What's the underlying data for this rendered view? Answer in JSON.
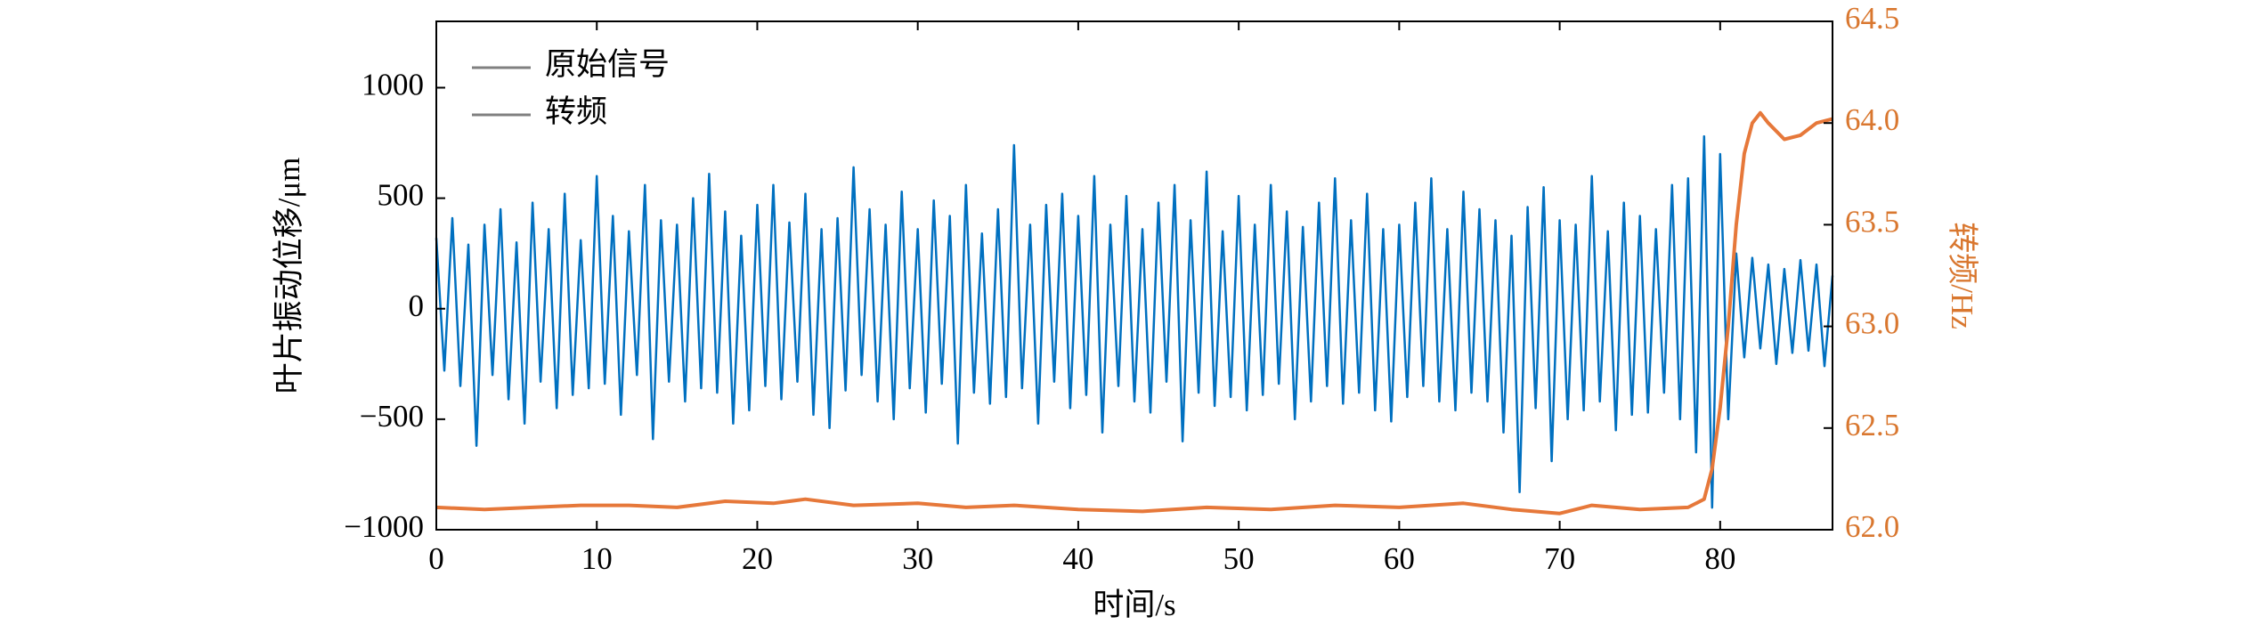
{
  "chart_data": {
    "type": "line",
    "xlabel": "时间/s",
    "ylabel": "叶片振动位移/μm",
    "y2label": "转频/Hz",
    "xlim": [
      0,
      87
    ],
    "xticks": [
      0,
      10,
      20,
      30,
      40,
      50,
      60,
      70,
      80
    ],
    "ylim": [
      -1000,
      1300
    ],
    "yticks": [
      {
        "value": -1000,
        "label": "−1000"
      },
      {
        "value": -500,
        "label": "−500"
      },
      0,
      500,
      1000
    ],
    "y2lim": [
      62,
      64.5
    ],
    "y2ticks": [
      {
        "value": 62,
        "label": "62.0"
      },
      62.5,
      {
        "value": 63,
        "label": "63.0"
      },
      63.5,
      {
        "value": 64,
        "label": "64.0"
      },
      64.5
    ],
    "y2color": "#d9772f",
    "legend": "upper left",
    "legend_color": "#808080",
    "series": [
      {
        "name": "原始信号",
        "color": "#0070c0",
        "x": [
          0,
          0.5,
          1,
          1.5,
          2,
          2.5,
          3,
          3.5,
          4,
          4.5,
          5,
          5.5,
          6,
          6.5,
          7,
          7.5,
          8,
          8.5,
          9,
          9.5,
          10,
          10.5,
          11,
          11.5,
          12,
          12.5,
          13,
          13.5,
          14,
          14.5,
          15,
          15.5,
          16,
          16.5,
          17,
          17.5,
          18,
          18.5,
          19,
          19.5,
          20,
          20.5,
          21,
          21.5,
          22,
          22.5,
          23,
          23.5,
          24,
          24.5,
          25,
          25.5,
          26,
          26.5,
          27,
          27.5,
          28,
          28.5,
          29,
          29.5,
          30,
          30.5,
          31,
          31.5,
          32,
          32.5,
          33,
          33.5,
          34,
          34.5,
          35,
          35.5,
          36,
          36.5,
          37,
          37.5,
          38,
          38.5,
          39,
          39.5,
          40,
          40.5,
          41,
          41.5,
          42,
          42.5,
          43,
          43.5,
          44,
          44.5,
          45,
          45.5,
          46,
          46.5,
          47,
          47.5,
          48,
          48.5,
          49,
          49.5,
          50,
          50.5,
          51,
          51.5,
          52,
          52.5,
          53,
          53.5,
          54,
          54.5,
          55,
          55.5,
          56,
          56.5,
          57,
          57.5,
          58,
          58.5,
          59,
          59.5,
          60,
          60.5,
          61,
          61.5,
          62,
          62.5,
          63,
          63.5,
          64,
          64.5,
          65,
          65.5,
          66,
          66.5,
          67,
          67.5,
          68,
          68.5,
          69,
          69.5,
          70,
          70.5,
          71,
          71.5,
          72,
          72.5,
          73,
          73.5,
          74,
          74.5,
          75,
          75.5,
          76,
          76.5,
          77,
          77.5,
          78,
          78.5,
          79,
          79.5,
          80,
          80.5,
          81,
          81.5,
          82,
          82.5,
          83,
          83.5,
          84,
          84.5,
          85,
          85.5,
          86,
          86.5,
          87
        ],
        "values": [
          320,
          -280,
          410,
          -350,
          290,
          -620,
          380,
          -300,
          450,
          -410,
          300,
          -520,
          480,
          -330,
          360,
          -450,
          520,
          -390,
          310,
          -360,
          600,
          -340,
          420,
          -480,
          350,
          -300,
          560,
          -590,
          400,
          -330,
          380,
          -420,
          500,
          -360,
          610,
          -380,
          440,
          -520,
          330,
          -460,
          470,
          -350,
          560,
          -410,
          390,
          -330,
          520,
          -480,
          360,
          -540,
          410,
          -370,
          640,
          -300,
          450,
          -420,
          380,
          -500,
          530,
          -360,
          360,
          -470,
          490,
          -340,
          420,
          -610,
          560,
          -380,
          340,
          -430,
          450,
          -400,
          740,
          -360,
          380,
          -520,
          470,
          -330,
          520,
          -450,
          420,
          -390,
          600,
          -560,
          380,
          -350,
          510,
          -420,
          360,
          -470,
          480,
          -330,
          560,
          -600,
          400,
          -380,
          620,
          -440,
          350,
          -400,
          510,
          -460,
          380,
          -390,
          560,
          -340,
          440,
          -500,
          370,
          -420,
          480,
          -350,
          590,
          -430,
          400,
          -380,
          520,
          -460,
          360,
          -510,
          380,
          -400,
          480,
          -350,
          590,
          -420,
          360,
          -460,
          530,
          -380,
          450,
          -420,
          400,
          -560,
          330,
          -830,
          460,
          -450,
          550,
          -690,
          400,
          -500,
          380,
          -460,
          600,
          -420,
          350,
          -550,
          480,
          -480,
          420,
          -470,
          360,
          -380,
          560,
          -500,
          590,
          -650,
          780,
          -900,
          700,
          -500,
          250,
          -220,
          230,
          -180,
          200,
          -250,
          180,
          -200,
          220,
          -190,
          200,
          -260,
          150
        ]
      },
      {
        "name": "转频",
        "color": "#e6783a",
        "axis": "y2",
        "x": [
          0,
          3,
          6,
          9,
          12,
          15,
          18,
          21,
          23,
          26,
          30,
          33,
          36,
          40,
          44,
          48,
          52,
          56,
          60,
          64,
          67,
          70,
          72,
          75,
          78,
          79,
          79.5,
          80,
          80.5,
          81,
          81.5,
          82,
          82.5,
          83,
          84,
          85,
          86,
          87
        ],
        "values": [
          62.11,
          62.1,
          62.11,
          62.12,
          62.12,
          62.11,
          62.14,
          62.13,
          62.15,
          62.12,
          62.13,
          62.11,
          62.12,
          62.1,
          62.09,
          62.11,
          62.1,
          62.12,
          62.11,
          62.13,
          62.1,
          62.08,
          62.12,
          62.1,
          62.11,
          62.15,
          62.3,
          62.6,
          63.0,
          63.5,
          63.85,
          64.0,
          64.05,
          64.0,
          63.92,
          63.94,
          64.0,
          64.02
        ]
      }
    ]
  }
}
